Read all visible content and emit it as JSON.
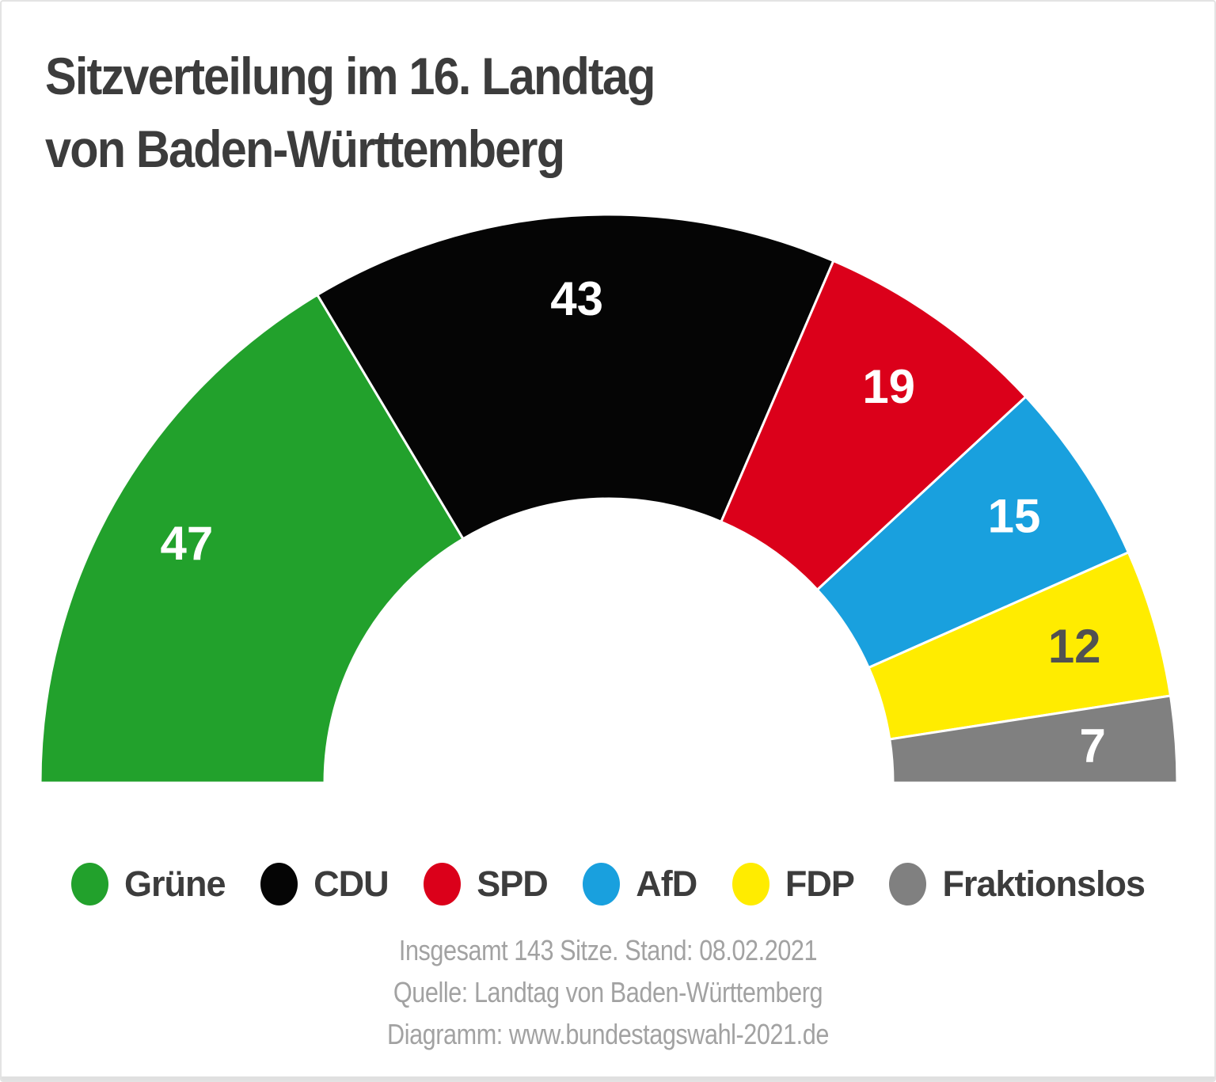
{
  "page": {
    "title_line1": "Sitzverteilung im 16. Landtag",
    "title_line2": "von Baden-Württemberg"
  },
  "chart_data": {
    "type": "pie",
    "variant": "hemicycle-half-donut",
    "title": "Sitzverteilung im 16. Landtag von Baden-Württemberg",
    "total_seats": 143,
    "as_of": "08.02.2021",
    "start_angle_deg": 180,
    "end_angle_deg": 0,
    "inner_radius_ratio": 0.5,
    "legend_position": "bottom",
    "series": [
      {
        "name": "Grüne",
        "slug": "gruene",
        "seats": 47,
        "color": "#22A12C",
        "label_color": "#FFFFFF"
      },
      {
        "name": "CDU",
        "slug": "cdu",
        "seats": 43,
        "color": "#050505",
        "label_color": "#FFFFFF"
      },
      {
        "name": "SPD",
        "slug": "spd",
        "seats": 19,
        "color": "#DB001A",
        "label_color": "#FFFFFF"
      },
      {
        "name": "AfD",
        "slug": "afd",
        "seats": 15,
        "color": "#19A0DE",
        "label_color": "#FFFFFF"
      },
      {
        "name": "FDP",
        "slug": "fdp",
        "seats": 12,
        "color": "#FFEC00",
        "label_color": "#515151"
      },
      {
        "name": "Fraktionslos",
        "slug": "fraktionslos",
        "seats": 7,
        "color": "#808080",
        "label_color": "#FFFFFF"
      }
    ]
  },
  "footer": {
    "line1": "Insgesamt 143 Sitze. Stand: 08.02.2021",
    "line2": "Quelle: Landtag von Baden-Württemberg",
    "line3": "Diagramm: www.bundestagswahl-2021.de"
  }
}
